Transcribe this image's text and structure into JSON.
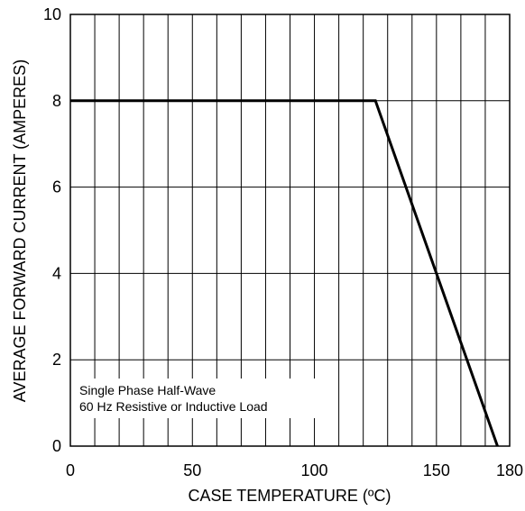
{
  "chart_data": {
    "type": "line",
    "title": "",
    "xlabel": "CASE TEMPERATURE (ºC)",
    "ylabel": "AVERAGE FORWARD CURRENT (AMPERES)",
    "xlim": [
      0,
      180
    ],
    "ylim": [
      0,
      10
    ],
    "x_ticks": [
      0,
      50,
      100,
      150,
      180
    ],
    "y_ticks": [
      0,
      2,
      4,
      6,
      8,
      10
    ],
    "x_tick_labels": [
      "0",
      "50",
      "100",
      "150",
      "180"
    ],
    "y_tick_labels": [
      "0",
      "2",
      "4",
      "6",
      "8",
      "10"
    ],
    "grid": true,
    "x_grid_step": 10,
    "y_grid_step": 2,
    "series": [
      {
        "x": [
          0,
          125,
          175
        ],
        "y": [
          8,
          8,
          0
        ],
        "color": "#000000"
      }
    ],
    "annotations": [
      "Single Phase Half-Wave",
      "60 Hz Resistive or Inductive Load"
    ]
  }
}
